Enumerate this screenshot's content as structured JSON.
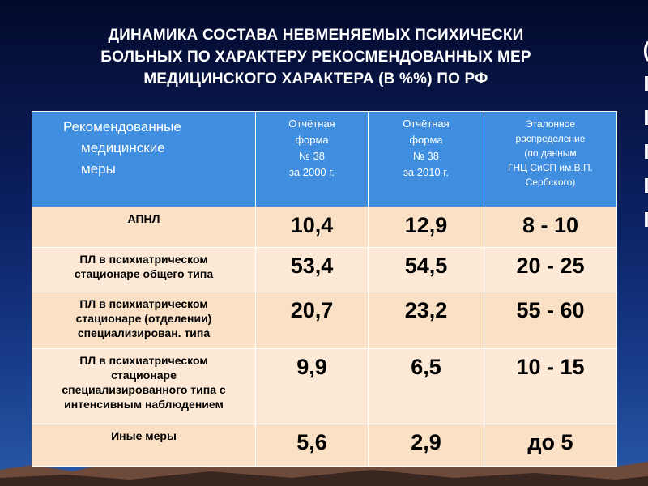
{
  "title": {
    "lines": [
      "ДИНАМИКА СОСТАВА НЕВМЕНЯЕМЫХ ПСИХИЧЕСКИ",
      "БОЛЬНЫХ ПО ХАРАКТЕРУ РЕКОСМЕНДОВАННЫХ МЕР",
      "МЕДИЦИНСКОГО ХАРАКТЕРА (В %%) ПО РФ"
    ]
  },
  "table": {
    "header": {
      "measures": [
        "Рекомендованные",
        "медицинские",
        "меры"
      ],
      "form2000": [
        "Отчётная",
        "форма",
        "№ 38",
        "за 2000 г."
      ],
      "form2010": [
        "Отчётная",
        "форма",
        "№ 38",
        "за 2010 г."
      ],
      "reference": [
        "Эталонное",
        "распределение",
        "(по данным",
        "ГНЦ СиСП им.В.П.",
        "Сербского)"
      ]
    },
    "rows": [
      {
        "label": [
          "АПНЛ"
        ],
        "v2000": "10,4",
        "v2010": "12,9",
        "ref": "8 - 10"
      },
      {
        "label": [
          "ПЛ в психиатрическом",
          "стационаре общего типа"
        ],
        "v2000": "53,4",
        "v2010": "54,5",
        "ref": "20 - 25"
      },
      {
        "label": [
          "ПЛ в психиатрическом",
          "стационаре (отделении)",
          "специализирован. типа"
        ],
        "v2000": "20,7",
        "v2010": "23,2",
        "ref": "55 - 60"
      },
      {
        "label": [
          "ПЛ в психиатрическом",
          "стационаре",
          "специализированного типа с",
          "интенсивным наблюдением"
        ],
        "v2000": "9,9",
        "v2010": "6,5",
        "ref": "10 - 15"
      },
      {
        "label": [
          "Иные меры"
        ],
        "v2000": "5,6",
        "v2010": "2,9",
        "ref": "до 5"
      }
    ]
  },
  "colors": {
    "header_bg": "#3f8ee0",
    "row_bg": "#fae0c5",
    "background": "#0b2163"
  }
}
